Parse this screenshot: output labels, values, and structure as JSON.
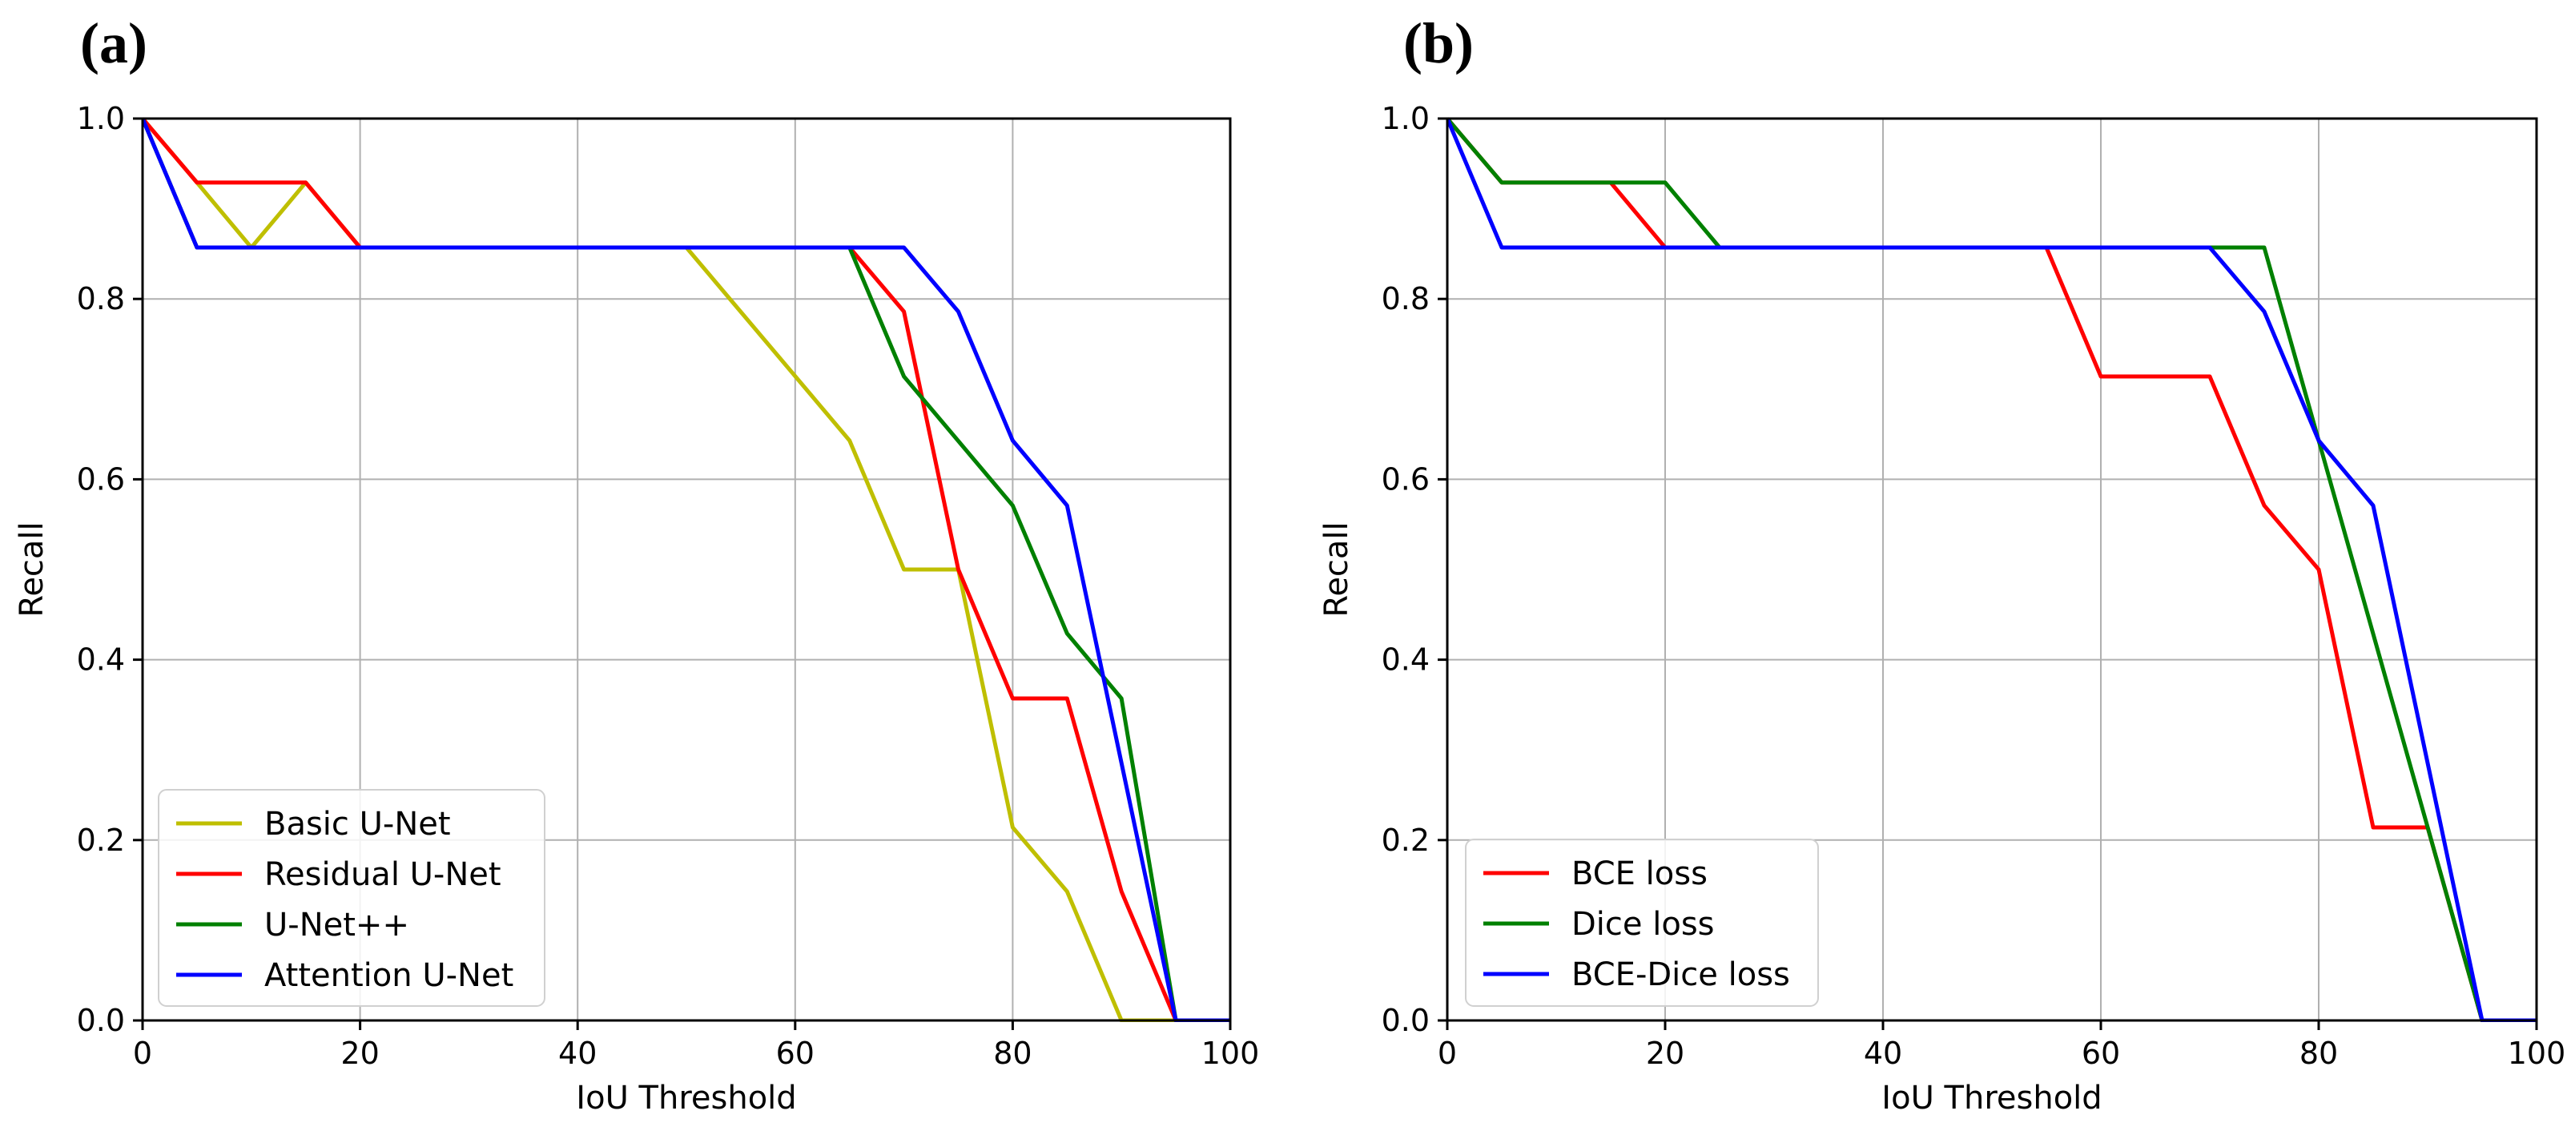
{
  "chart_data": [
    {
      "type": "line",
      "panel_label": "(a)",
      "xlabel": "IoU Threshold",
      "ylabel": "Recall",
      "xlim": [
        0,
        100
      ],
      "ylim": [
        0,
        1
      ],
      "xticks": [
        0,
        20,
        40,
        60,
        80,
        100
      ],
      "xtick_labels": [
        "0",
        "20",
        "40",
        "60",
        "80",
        "100"
      ],
      "yticks": [
        0,
        0.2,
        0.4,
        0.6,
        0.8,
        1.0
      ],
      "ytick_labels": [
        "0.0",
        "0.2",
        "0.4",
        "0.6",
        "0.8",
        "1.0"
      ],
      "grid": true,
      "legend_position": "lower-left",
      "series": [
        {
          "name": "Basic U-Net",
          "color": "#bfbf00",
          "x": [
            0,
            5,
            10,
            15,
            20,
            50,
            65,
            70,
            75,
            80,
            85,
            90,
            95,
            100
          ],
          "y": [
            1.0,
            0.929,
            0.857,
            0.929,
            0.857,
            0.857,
            0.643,
            0.5,
            0.5,
            0.214,
            0.143,
            0.0,
            0.0,
            0.0
          ]
        },
        {
          "name": "Residual U-Net",
          "color": "#ff0000",
          "x": [
            0,
            5,
            15,
            20,
            65,
            70,
            75,
            80,
            85,
            90,
            95,
            100
          ],
          "y": [
            1.0,
            0.929,
            0.929,
            0.857,
            0.857,
            0.786,
            0.5,
            0.357,
            0.357,
            0.143,
            0.0,
            0.0
          ]
        },
        {
          "name": "U-Net++",
          "color": "#008000",
          "x": [
            0,
            5,
            65,
            70,
            80,
            85,
            90,
            95,
            100
          ],
          "y": [
            1.0,
            0.857,
            0.857,
            0.714,
            0.571,
            0.429,
            0.357,
            0.0,
            0.0
          ]
        },
        {
          "name": "Attention U-Net",
          "color": "#0000ff",
          "x": [
            0,
            5,
            70,
            75,
            80,
            85,
            95,
            100
          ],
          "y": [
            1.0,
            0.857,
            0.857,
            0.786,
            0.643,
            0.571,
            0.0,
            0.0
          ]
        }
      ]
    },
    {
      "type": "line",
      "panel_label": "(b)",
      "xlabel": "IoU Threshold",
      "ylabel": "Recall",
      "xlim": [
        0,
        100
      ],
      "ylim": [
        0,
        1
      ],
      "xticks": [
        0,
        20,
        40,
        60,
        80,
        100
      ],
      "xtick_labels": [
        "0",
        "20",
        "40",
        "60",
        "80",
        "100"
      ],
      "yticks": [
        0,
        0.2,
        0.4,
        0.6,
        0.8,
        1.0
      ],
      "ytick_labels": [
        "0.0",
        "0.2",
        "0.4",
        "0.6",
        "0.8",
        "1.0"
      ],
      "grid": true,
      "legend_position": "lower-left",
      "series": [
        {
          "name": "BCE loss",
          "color": "#ff0000",
          "x": [
            0,
            5,
            15,
            20,
            55,
            60,
            70,
            75,
            80,
            85,
            90,
            95,
            100
          ],
          "y": [
            1.0,
            0.929,
            0.929,
            0.857,
            0.857,
            0.714,
            0.714,
            0.571,
            0.5,
            0.214,
            0.214,
            0.0,
            0.0
          ]
        },
        {
          "name": "Dice loss",
          "color": "#008000",
          "x": [
            0,
            5,
            20,
            25,
            75,
            80,
            95,
            100
          ],
          "y": [
            1.0,
            0.929,
            0.929,
            0.857,
            0.857,
            0.643,
            0.0,
            0.0
          ]
        },
        {
          "name": "BCE-Dice loss",
          "color": "#0000ff",
          "x": [
            0,
            5,
            70,
            75,
            80,
            85,
            95,
            100
          ],
          "y": [
            1.0,
            0.857,
            0.857,
            0.786,
            0.643,
            0.571,
            0.0,
            0.0
          ]
        }
      ]
    }
  ]
}
